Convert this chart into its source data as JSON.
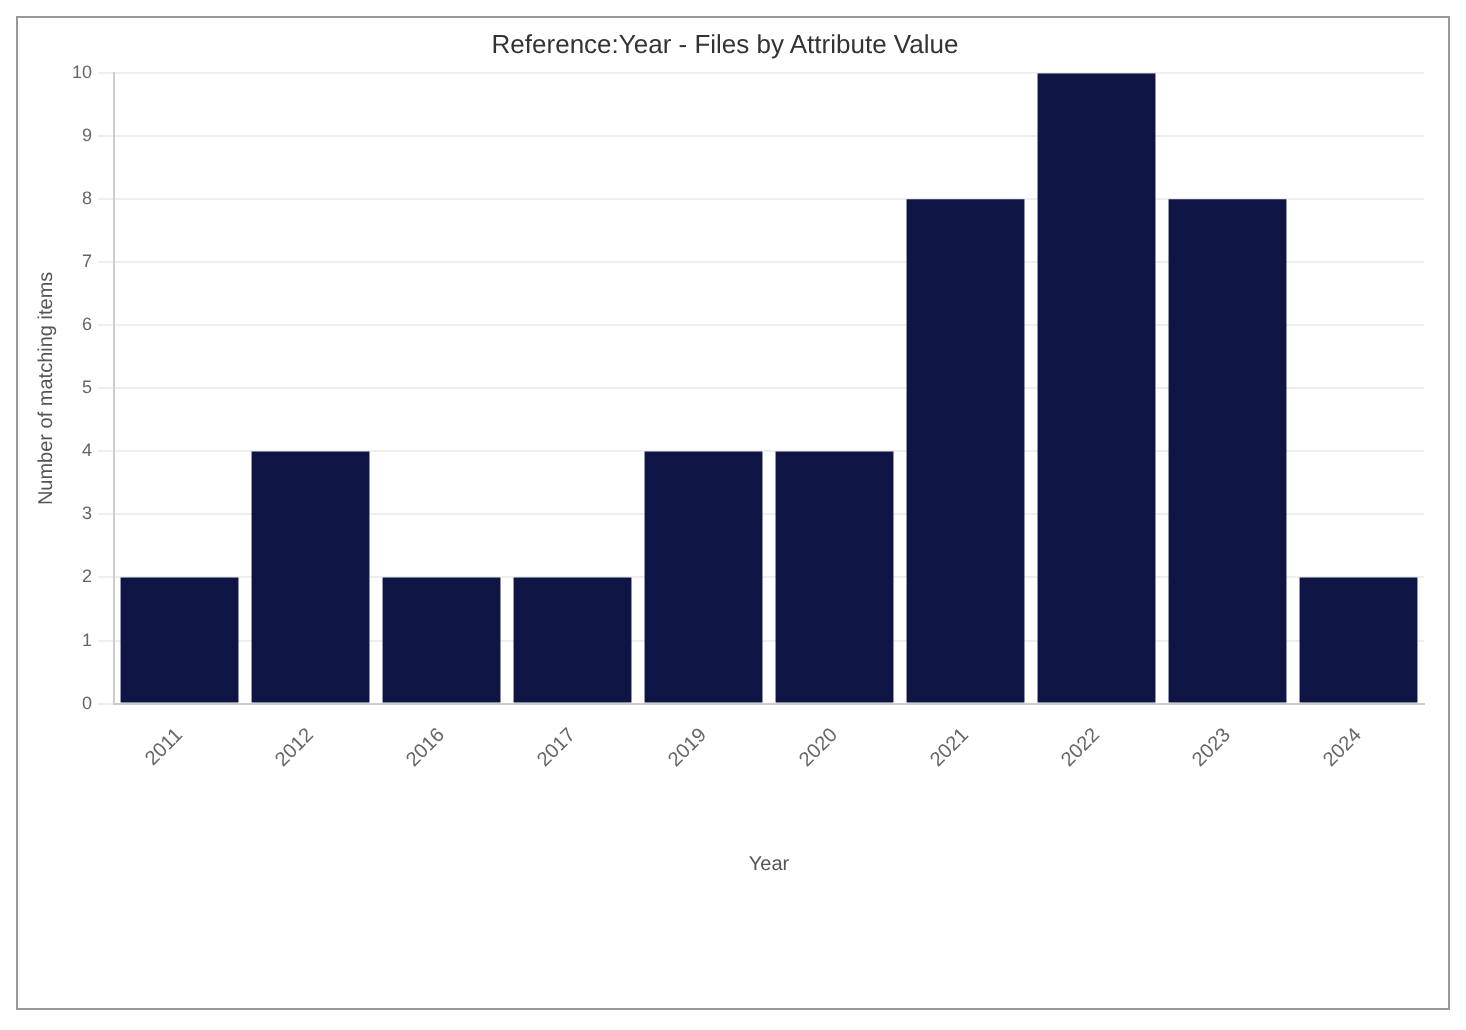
{
  "chart_data": {
    "type": "bar",
    "title": "Reference:Year - Files by Attribute Value",
    "xlabel": "Year",
    "ylabel": "Number of matching items",
    "categories": [
      "2011",
      "2012",
      "2016",
      "2017",
      "2019",
      "2020",
      "2021",
      "2022",
      "2023",
      "2024"
    ],
    "values": [
      2,
      4,
      2,
      2,
      4,
      4,
      8,
      10,
      8,
      2
    ],
    "color": "#0e1545",
    "ylim": [
      0,
      10
    ],
    "yticks": [
      0,
      1,
      2,
      3,
      4,
      5,
      6,
      7,
      8,
      9,
      10
    ],
    "grid": "y",
    "legend": false
  }
}
